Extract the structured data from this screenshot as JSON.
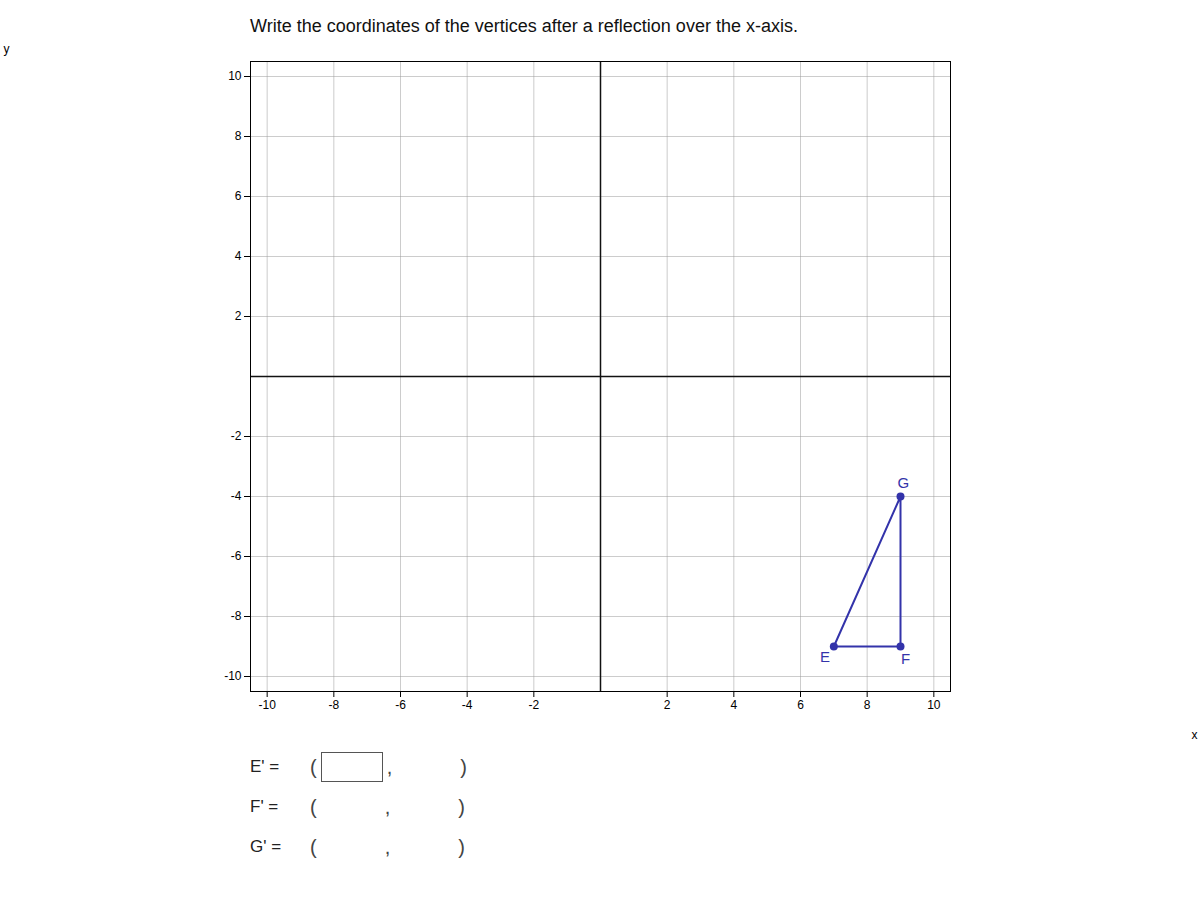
{
  "chart_data": {
    "type": "polygon",
    "title": "Write the coordinates of the vertices after a reflection over the x-axis.",
    "xlabel": "x",
    "ylabel": "y",
    "xlim": [
      -10.5,
      10.5
    ],
    "ylim": [
      -10.5,
      10.5
    ],
    "xticks": [
      -10,
      -8,
      -6,
      -4,
      -2,
      2,
      4,
      6,
      8,
      10
    ],
    "yticks": [
      -10,
      -8,
      -6,
      -4,
      -2,
      2,
      4,
      6,
      8,
      10
    ],
    "grid": true,
    "x": [
      7,
      9,
      9
    ],
    "values": [
      -9,
      -9,
      -4
    ],
    "labels": [
      "E",
      "F",
      "G"
    ],
    "color": "#3333aa",
    "marker": "circle",
    "annotations": [
      [
        "E' =",
        "(",
        ",",
        ")"
      ],
      [
        "F' =",
        "(",
        ",",
        ")"
      ],
      [
        "G' =",
        "(",
        ",",
        ")"
      ]
    ]
  }
}
